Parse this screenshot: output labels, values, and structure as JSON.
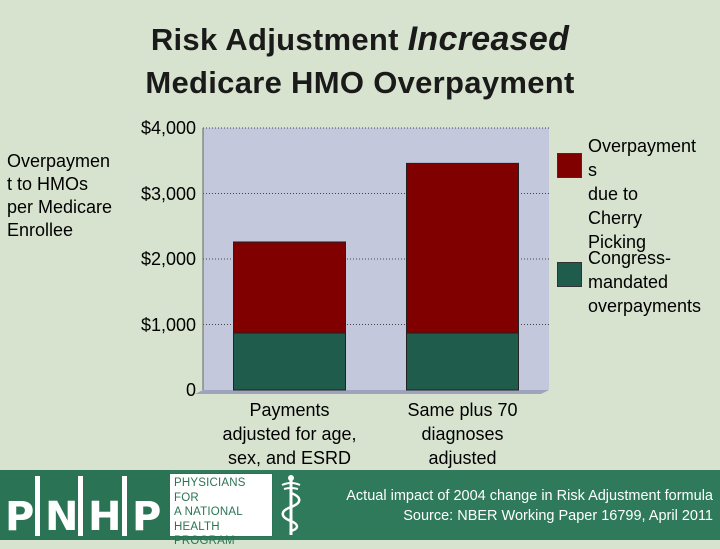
{
  "title": {
    "line1_prefix": "Risk Adjustment ",
    "line1_emphasis": "Increased",
    "line2": "Medicare HMO Overpayment"
  },
  "chart_data": {
    "type": "bar",
    "stacked": true,
    "ylabel": "Overpaymen\nt to HMOs\nper Medicare\nEnrollee",
    "ylim": [
      0,
      4000
    ],
    "yticks": [
      0,
      1000,
      2000,
      3000,
      4000
    ],
    "ytick_labels": [
      "0",
      "$1,000",
      "$2,000",
      "$3,000",
      "$4,000"
    ],
    "categories": [
      "Payments\nadjusted for age,\nsex, and ESRD",
      "Same plus 70\ndiagnoses\nadjusted"
    ],
    "series": [
      {
        "name": "Congress-\nmandated\noverpayments",
        "color": "#1f5c4c",
        "values": [
          870,
          870
        ]
      },
      {
        "name": "Overpayment\ns\ndue to\nCherry\nPicking",
        "color": "#800000",
        "values": [
          1390,
          2590
        ]
      }
    ],
    "grid": "horizontal dotted",
    "legend_position": "right",
    "plot_background": "#c3c8dc",
    "colors": {
      "bar_outline": "#222222"
    }
  },
  "footer": {
    "logo_letters": [
      "P",
      "N",
      "H",
      "P"
    ],
    "logo_name": "PHYSICIANS FOR\nA NATIONAL\nHEALTH\nPROGRAM",
    "note_line1": "Actual impact of 2004 change in Risk Adjustment formula",
    "note_line2": "Source: NBER Working Paper 16799, April 2011",
    "colors": {
      "band": "#2e7a5a",
      "logo_text": "#2a7455"
    }
  }
}
